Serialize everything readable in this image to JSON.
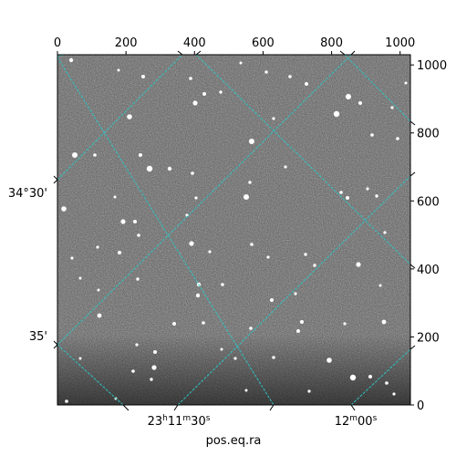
{
  "chart_data": {
    "type": "image",
    "xlabel": "pos.eq.ra",
    "ylabel": "",
    "pixel_axes": {
      "x": {
        "ticks": [
          0,
          200,
          400,
          600,
          800,
          1000
        ],
        "range": [
          0,
          1030
        ],
        "position": "top"
      },
      "y": {
        "ticks": [
          0,
          200,
          400,
          600,
          800,
          1000
        ],
        "range": [
          0,
          1030
        ],
        "position": "right"
      }
    },
    "world_axes": {
      "ra_ticks": [
        {
          "h": "23",
          "m": "11",
          "s": "30",
          "value_s": 83490
        },
        {
          "h": "",
          "m": "12",
          "s": "00",
          "value_s": 83520
        }
      ],
      "dec_ticks": [
        {
          "label": "34°30'",
          "value_arcmin": 2070
        },
        {
          "label": "35'",
          "value_arcmin": 2075
        }
      ]
    },
    "grid": true,
    "grid_color": "#2ec4c4",
    "colormap": "gray"
  }
}
